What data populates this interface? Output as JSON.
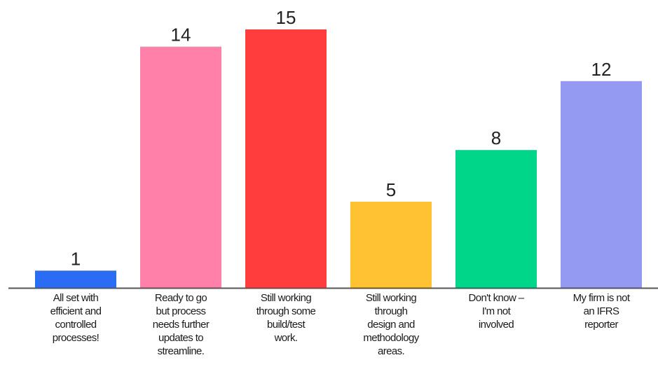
{
  "chart_data": {
    "type": "bar",
    "categories": [
      [
        "All set with",
        "efficient and",
        "controlled",
        "processes!"
      ],
      [
        "Ready to go",
        "but process",
        "needs further",
        "updates to",
        "streamline."
      ],
      [
        "Still working",
        "through some",
        "build/test",
        "work."
      ],
      [
        "Still working",
        "through",
        "design and",
        "methodology",
        "areas."
      ],
      [
        "Don't know –",
        "I'm not",
        "involved"
      ],
      [
        "My firm is not",
        "an IFRS",
        "reporter"
      ]
    ],
    "values": [
      1,
      14,
      15,
      5,
      8,
      12
    ],
    "value_labels": [
      "1",
      "14",
      "15",
      "5",
      "8",
      "12"
    ],
    "colors": [
      "#2a6df4",
      "#ff80a9",
      "#ff3d3d",
      "#ffc233",
      "#00d68a",
      "#9499f2"
    ],
    "title": "",
    "xlabel": "",
    "ylabel": "",
    "ylim": [
      0,
      15
    ],
    "grid": false,
    "legend": "none",
    "axis_color": "#555555"
  }
}
